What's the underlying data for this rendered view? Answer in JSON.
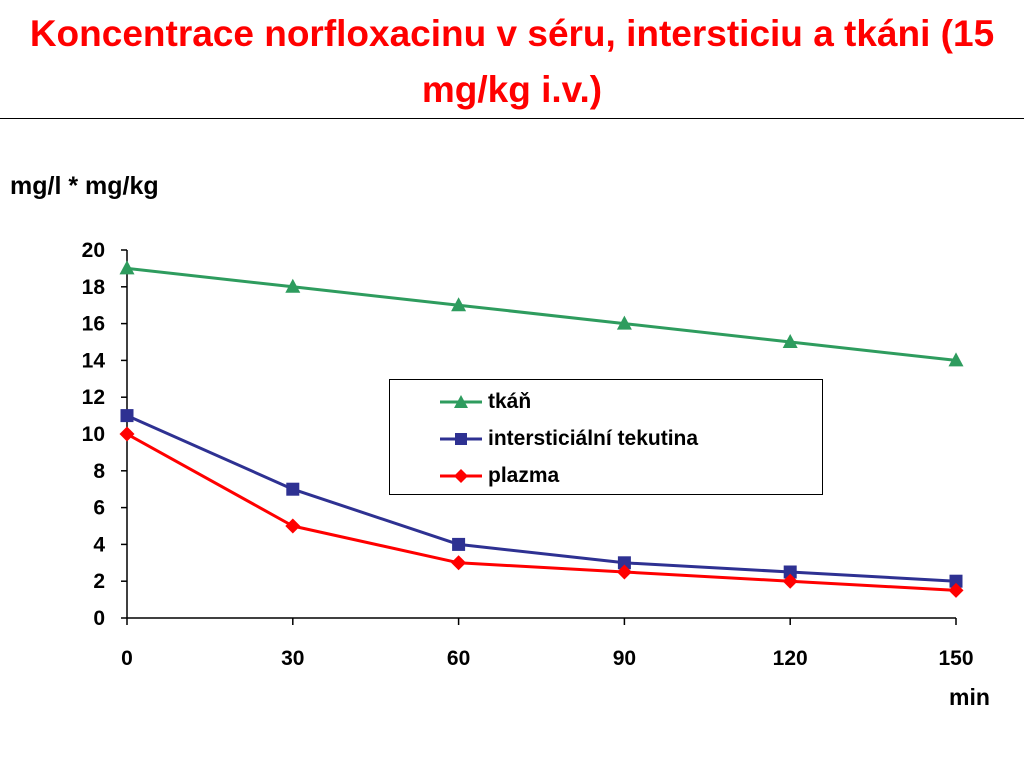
{
  "title": "Koncentrace norfloxacinu v séru, intersticiu a tkáni (15 mg/kg i.v.)",
  "chart_data": {
    "type": "line",
    "ylabel": "mg/l * mg/kg",
    "xlabel": "min",
    "x": [
      0,
      30,
      60,
      90,
      120,
      150
    ],
    "xlim": [
      0,
      150
    ],
    "ylim": [
      0,
      20
    ],
    "yticks": [
      0,
      2,
      4,
      6,
      8,
      10,
      12,
      14,
      16,
      18,
      20
    ],
    "xticks": [
      0,
      30,
      60,
      90,
      120,
      150
    ],
    "grid": false,
    "legend_position": "center-right",
    "series": [
      {
        "name": "tkáň",
        "color": "#2e9c5e",
        "marker": "triangle",
        "values": [
          19,
          18,
          17,
          16,
          15,
          14
        ]
      },
      {
        "name": "intersticiální tekutina",
        "color": "#2e3192",
        "marker": "square",
        "values": [
          11,
          7,
          4,
          3,
          2.5,
          2
        ]
      },
      {
        "name": "plazma",
        "color": "#ff0000",
        "marker": "diamond",
        "values": [
          10,
          5,
          3,
          2.5,
          2,
          1.5
        ]
      }
    ]
  }
}
